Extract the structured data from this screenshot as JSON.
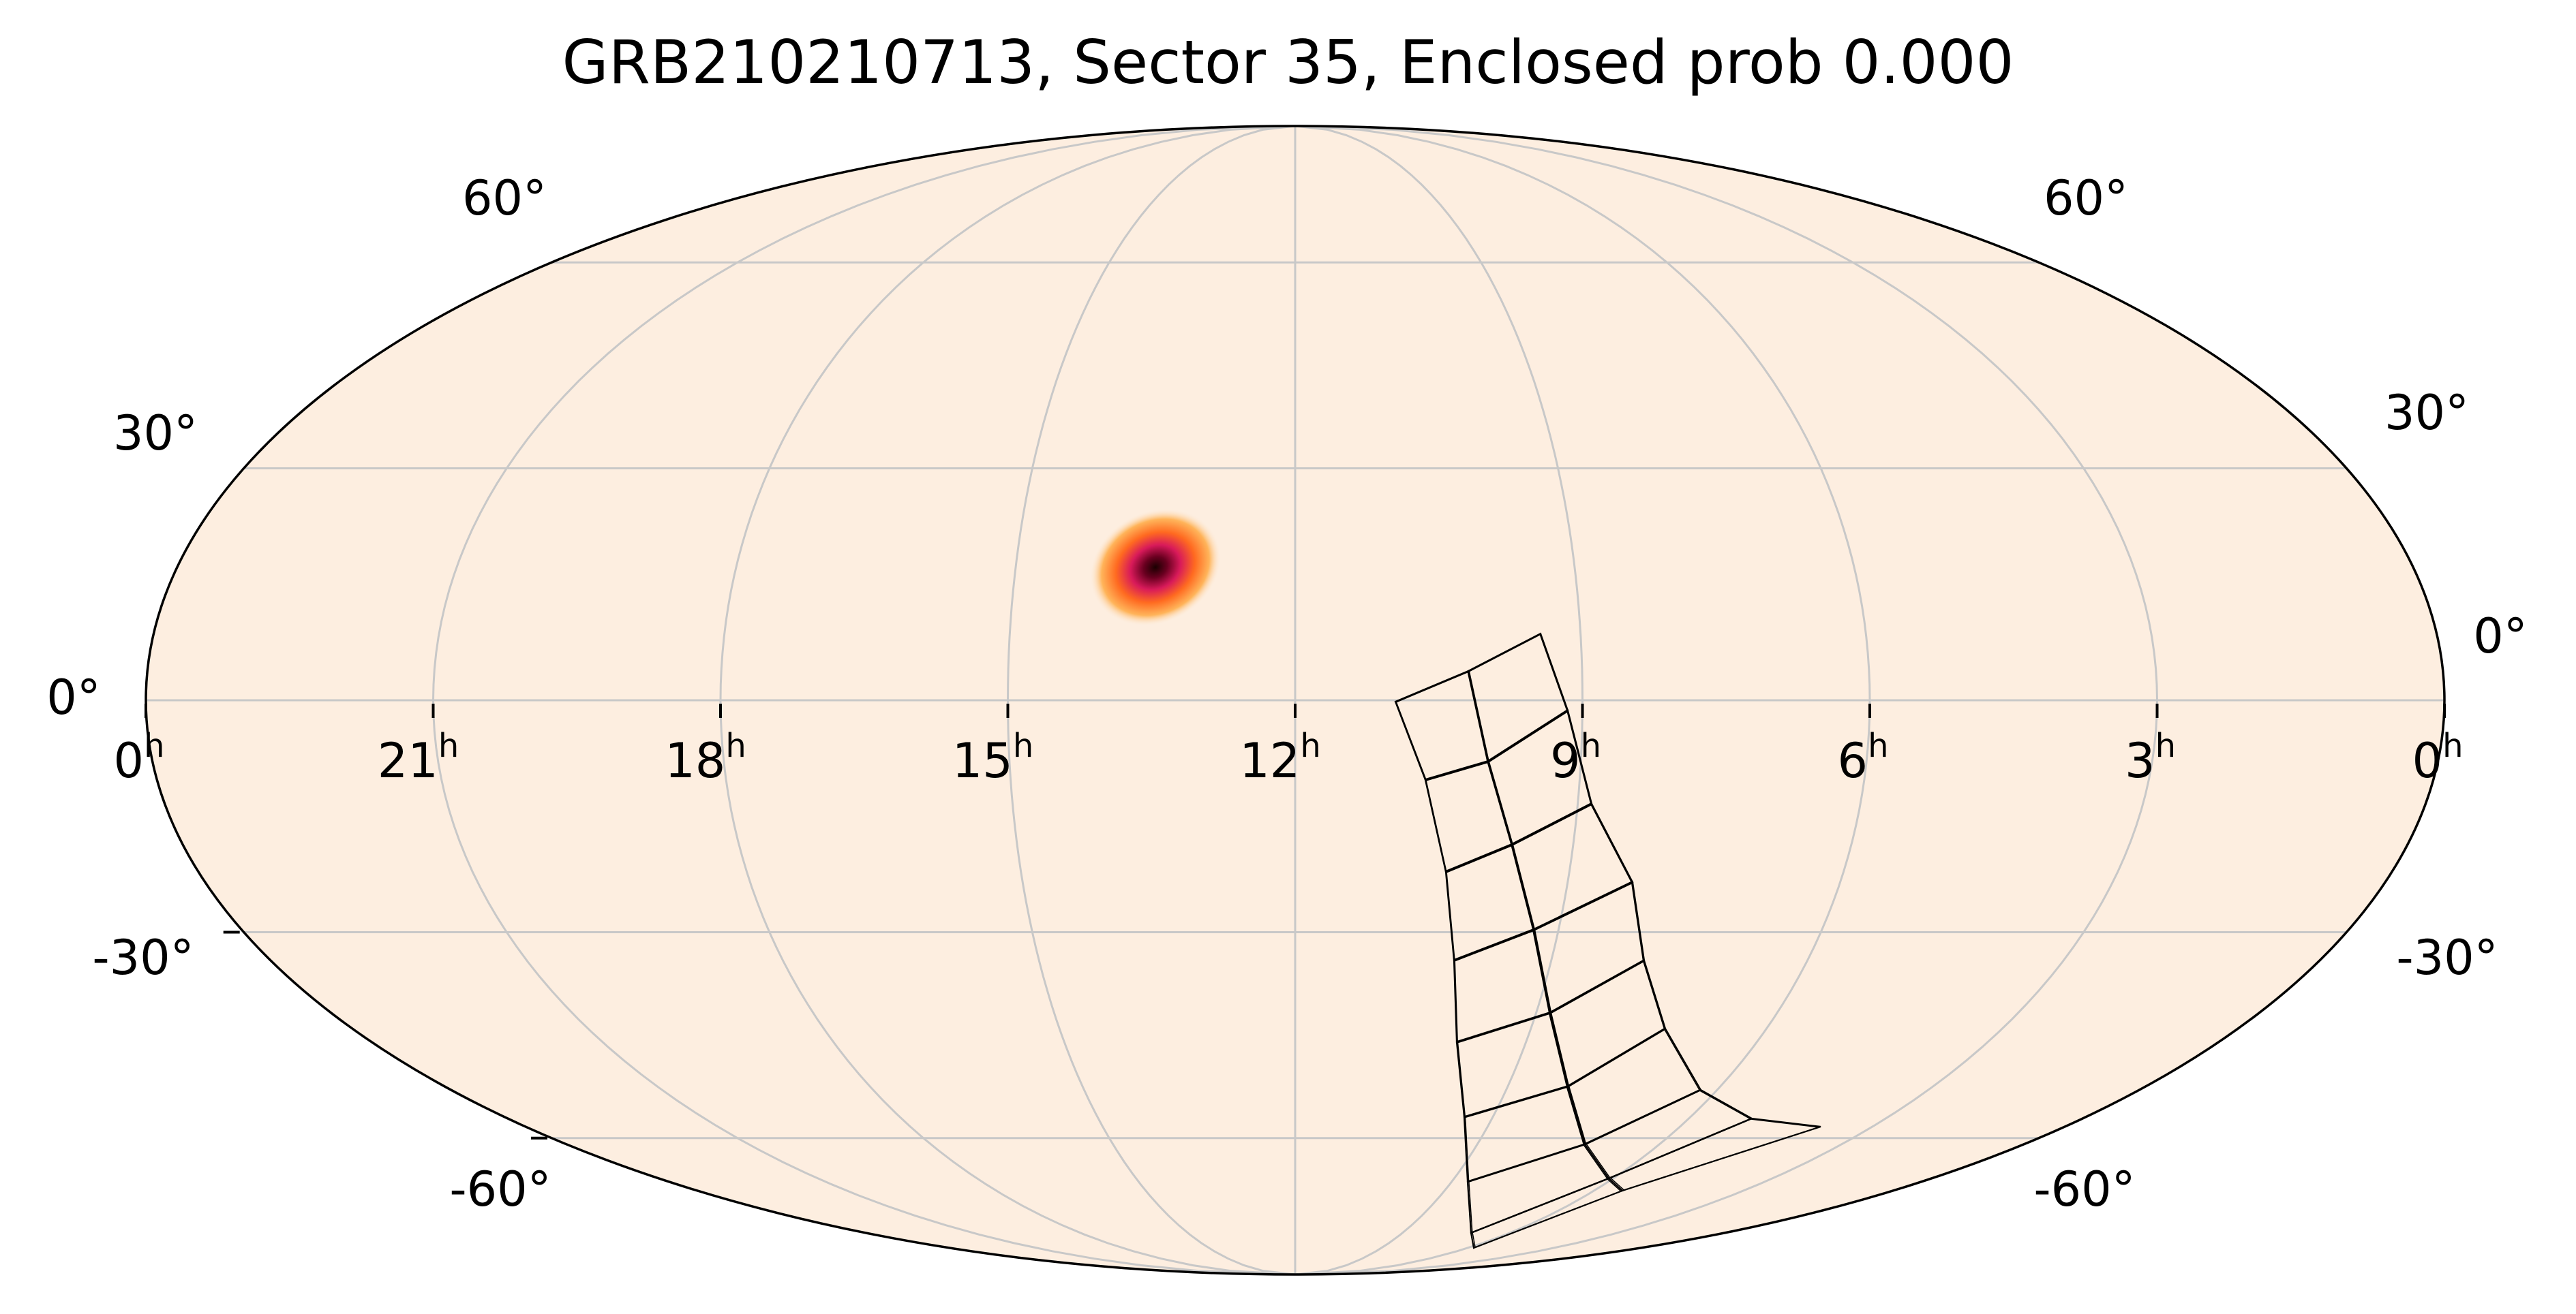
{
  "chart_data": {
    "type": "heatmap",
    "title": "GRB210210713, Sector 35, Enclosed prob 0.000",
    "projection": "mollweide",
    "background_color": "#fdeee0",
    "colormap": "afmhot_r-like (cream → orange → magenta → black)",
    "grid": true,
    "ra_tick_labels": [
      {
        "hours": 24,
        "label": "0",
        "sup": "h"
      },
      {
        "hours": 21,
        "label": "21",
        "sup": "h"
      },
      {
        "hours": 18,
        "label": "18",
        "sup": "h"
      },
      {
        "hours": 15,
        "label": "15",
        "sup": "h"
      },
      {
        "hours": 12,
        "label": "12",
        "sup": "h"
      },
      {
        "hours": 9,
        "label": "9",
        "sup": "h"
      },
      {
        "hours": 6,
        "label": "6",
        "sup": "h"
      },
      {
        "hours": 3,
        "label": "3",
        "sup": "h"
      },
      {
        "hours": 0,
        "label": "0",
        "sup": "h"
      }
    ],
    "dec_tick_labels": [
      {
        "dec": 60,
        "label": "60°"
      },
      {
        "dec": 30,
        "label": "30°"
      },
      {
        "dec": 0,
        "label": "0°"
      },
      {
        "dec": -30,
        "label": "-30°"
      },
      {
        "dec": -60,
        "label": "-60°"
      }
    ],
    "probability_blob": {
      "ra_hours": 13.5,
      "dec_deg": 17,
      "description": "localization probability peak"
    },
    "sector_footprint": {
      "label": "Sector 35 camera CCD footprints",
      "columns": 2,
      "rows": 8
    }
  }
}
